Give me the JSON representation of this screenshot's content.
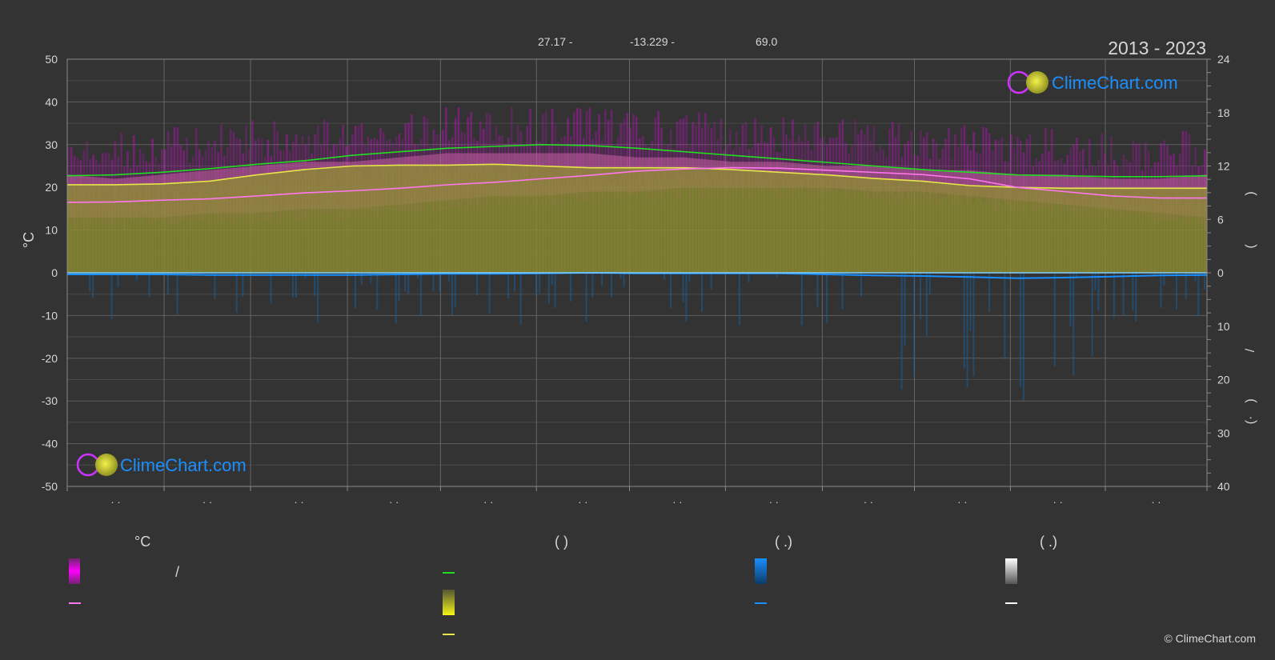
{
  "header": {
    "coords": [
      "27.17 -",
      "-13.229 -",
      "69.0"
    ],
    "period": "2013 - 2023"
  },
  "brand": {
    "name": "ClimeChart.com",
    "copyright": "© ClimeChart.com"
  },
  "legend": {
    "temperature_unit": "°C",
    "col2_header": "(           )",
    "col3_header": "(    .)",
    "col4_header": "(    .)",
    "col1_slash": "/"
  },
  "colors": {
    "background": "#333333",
    "grid": "#5f5f5f",
    "magenta": "#ff00ff",
    "olive": "#8c8c32",
    "pink_band": "#c75fa3",
    "daylight_line": "#22dd22",
    "sunshine_line": "#e6e64a",
    "mean_temp_line": "#ff77ee",
    "rain_line": "#1a8fff",
    "brand_blue": "#1a8fff"
  },
  "chart_data": {
    "type": "area",
    "title": "",
    "xlabel": "",
    "ylabel": "°C",
    "ylim": [
      -50,
      50
    ],
    "y_ticks": [
      50,
      40,
      30,
      20,
      10,
      0,
      -10,
      -20,
      -30,
      -40,
      -50
    ],
    "y2_top_ticks": [
      24,
      18,
      12,
      6,
      0
    ],
    "y2_top_range": [
      0,
      24
    ],
    "y2_bottom_ticks": [
      0,
      10,
      20,
      30,
      40
    ],
    "y2_bottom_range": [
      0,
      40
    ],
    "x_tick_labels": [
      "· ·",
      "· ·",
      "· ·",
      "· ·",
      "· ·",
      "· ·",
      "· ·",
      "· ·",
      "· ·",
      "· ·",
      "· ·",
      "· ·"
    ],
    "right_axis_glyphs": [
      ")",
      "(",
      "/",
      ")",
      "(·"
    ],
    "x": [
      0,
      0.5,
      1,
      1.5,
      2,
      2.5,
      3,
      3.5,
      4,
      4.5,
      5,
      5.5,
      6,
      6.5,
      7,
      7.5,
      8,
      8.5,
      9,
      9.5,
      10,
      10.5,
      11,
      11.5,
      12
    ],
    "series": [
      {
        "key": "daylight",
        "values": [
          10.9,
          11.0,
          11.3,
          11.7,
          12.2,
          12.6,
          13.2,
          13.6,
          14.0,
          14.2,
          14.4,
          14.3,
          14.0,
          13.6,
          13.2,
          12.8,
          12.4,
          12.0,
          11.6,
          11.3,
          11.0,
          10.9,
          10.8,
          10.8,
          10.9
        ]
      },
      {
        "key": "sunshine",
        "values": [
          9.9,
          9.9,
          10.0,
          10.3,
          11.0,
          11.6,
          12.0,
          12.1,
          12.1,
          12.2,
          12.0,
          11.8,
          11.8,
          11.8,
          11.6,
          11.3,
          11.0,
          10.6,
          10.3,
          9.8,
          9.6,
          9.5,
          9.5,
          9.5,
          9.5
        ]
      },
      {
        "key": "mean_temp",
        "values": [
          16.5,
          16.6,
          17.0,
          17.3,
          18.0,
          18.7,
          19.2,
          19.8,
          20.6,
          21.2,
          22.0,
          22.8,
          23.8,
          24.3,
          24.6,
          24.5,
          24.0,
          23.5,
          23.0,
          22.0,
          20.0,
          19.0,
          18.0,
          17.5,
          17.5
        ]
      },
      {
        "key": "temp_max_band_top",
        "values": [
          25,
          24,
          25,
          26,
          27,
          28,
          28,
          29,
          30,
          30,
          30,
          30,
          29,
          29,
          28,
          28,
          27,
          27,
          26,
          26,
          25,
          25,
          24,
          24,
          25
        ]
      },
      {
        "key": "temp_min_band_bottom",
        "values": [
          13,
          13,
          13,
          14,
          14,
          15,
          15,
          16,
          17,
          18,
          18,
          19,
          19,
          20,
          20,
          20,
          20,
          19,
          19,
          18,
          17,
          16,
          15,
          14,
          13
        ]
      },
      {
        "key": "rain_mean_mm",
        "values": [
          0.3,
          0.3,
          0.3,
          0.4,
          0.4,
          0.4,
          0.4,
          0.3,
          0.2,
          0.2,
          0.1,
          0.0,
          0.1,
          0.1,
          0.1,
          0.1,
          0.3,
          0.5,
          0.6,
          0.8,
          1.0,
          0.9,
          0.7,
          0.5,
          0.4
        ]
      }
    ]
  }
}
